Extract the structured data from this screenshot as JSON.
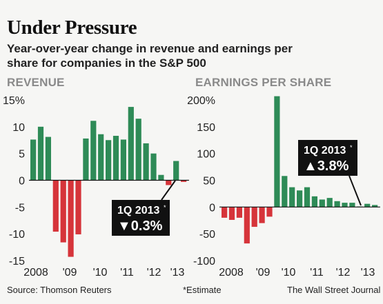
{
  "header": {
    "title": "Under Pressure",
    "subtitle": "Year-over-year change in revenue and earnings per share for companies in the S&P 500"
  },
  "colors": {
    "positive": "#2e8b57",
    "negative": "#d6343a",
    "callout_bg": "#111111",
    "callout_text": "#ffffff",
    "axis_label": "#8a8a8a"
  },
  "footer": {
    "source": "Source: Thomson Reuters",
    "estimate_note": "*Estimate",
    "credit": "The Wall Street Journal"
  },
  "chart_data": [
    {
      "type": "bar",
      "title": "REVENUE",
      "unit_suffix": "%",
      "ylim": [
        -15,
        15
      ],
      "yticks": [
        15,
        10,
        5,
        0,
        -5,
        -10,
        -15
      ],
      "ytick_labels": [
        "15%",
        "10",
        "5",
        "0",
        "-5",
        "-10",
        "-15"
      ],
      "xtick_labels": [
        "2008",
        "'09",
        "'10",
        "'11",
        "'12",
        "'13"
      ],
      "quarters": [
        "1Q 2008",
        "2Q 2008",
        "3Q 2008",
        "4Q 2008",
        "1Q 2009",
        "2Q 2009",
        "3Q 2009",
        "4Q 2009",
        "1Q 2010",
        "2Q 2010",
        "3Q 2010",
        "4Q 2010",
        "1Q 2011",
        "2Q 2011",
        "3Q 2011",
        "4Q 2011",
        "1Q 2012",
        "2Q 2012",
        "3Q 2012",
        "4Q 2012",
        "1Q 2013"
      ],
      "values": [
        7.6,
        10.0,
        8.1,
        -9.6,
        -11.6,
        -14.3,
        -10.1,
        7.8,
        11.1,
        8.6,
        7.5,
        8.3,
        7.6,
        13.7,
        11.5,
        6.9,
        5.0,
        1.0,
        -0.9,
        3.6,
        -0.3
      ],
      "callout": {
        "label": "1Q 2013",
        "star": "*",
        "arrow": "▼",
        "value": "0.3%"
      }
    },
    {
      "type": "bar",
      "title": "EARNINGS PER SHARE",
      "unit_suffix": "%",
      "ylim": [
        -100,
        200
      ],
      "yticks": [
        200,
        150,
        100,
        50,
        0,
        -50,
        -100
      ],
      "ytick_labels": [
        "200%",
        "150",
        "100",
        "50",
        "0",
        "-50",
        "-100"
      ],
      "xtick_labels": [
        "2008",
        "'09",
        "'10",
        "'11",
        "'12",
        "'13"
      ],
      "quarters": [
        "1Q 2008",
        "2Q 2008",
        "3Q 2008",
        "4Q 2008",
        "1Q 2009",
        "2Q 2009",
        "3Q 2009",
        "4Q 2009",
        "1Q 2010",
        "2Q 2010",
        "3Q 2010",
        "4Q 2010",
        "1Q 2011",
        "2Q 2011",
        "3Q 2011",
        "4Q 2011",
        "1Q 2012",
        "2Q 2012",
        "3Q 2012",
        "4Q 2012",
        "1Q 2013"
      ],
      "values": [
        -20,
        -24,
        -20,
        -68,
        -37,
        -30,
        -18,
        207,
        58,
        37,
        31,
        37,
        20,
        14,
        17,
        11,
        8,
        8,
        1,
        6,
        3.8
      ],
      "callout": {
        "label": "1Q 2013",
        "star": "*",
        "arrow": "▲",
        "value": "3.8%"
      }
    }
  ]
}
